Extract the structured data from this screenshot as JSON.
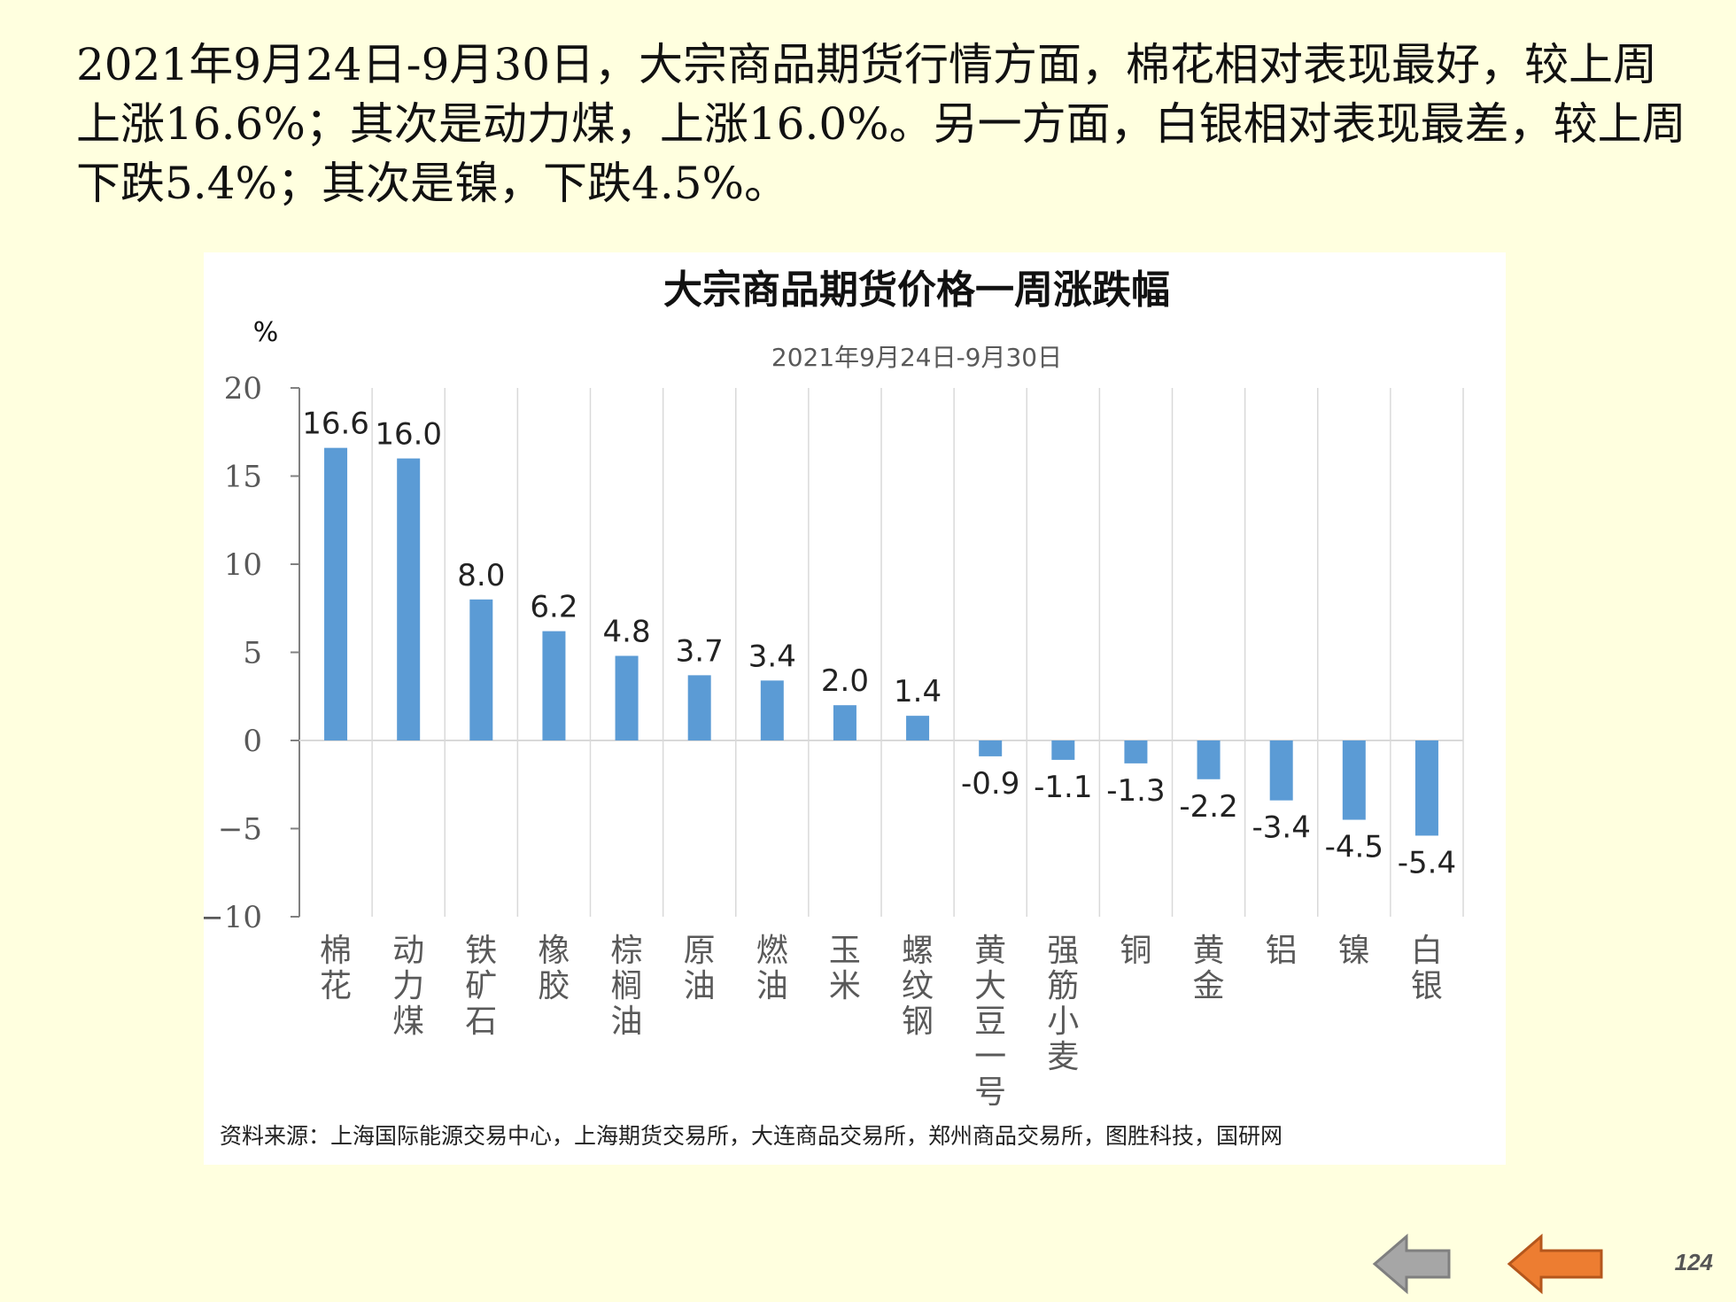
{
  "headline": "2021年9月24日-9月30日，大宗商品期货行情方面，棉花相对表现最好，较上周上涨16.6%；其次是动力煤，上涨16.0%。另一方面，白银相对表现最差，较上周下跌5.4%；其次是镍，下跌4.5%。",
  "chart_data": {
    "type": "bar",
    "title": "大宗商品期货价格一周涨跌幅",
    "subtitle": "2021年9月24日-9月30日",
    "ylabel": "%",
    "xlabel": "",
    "ylim": [
      -10,
      20
    ],
    "yticks": [
      20,
      15,
      10,
      5,
      0,
      -5,
      -10
    ],
    "ytick_labels": [
      "20",
      "15",
      "10",
      "5",
      "0",
      "−5",
      "−10"
    ],
    "categories": [
      "棉花",
      "动力煤",
      "铁矿石",
      "橡胶",
      "棕榈油",
      "原油",
      "燃油",
      "玉米",
      "螺纹钢",
      "黄大豆1号",
      "强筋小麦",
      "铜",
      "黄金",
      "铝",
      "镍",
      "白银"
    ],
    "category_labels": [
      "棉花",
      "动力煤",
      "铁矿石",
      "橡胶",
      "棕榈油",
      "原油",
      "燃油",
      "玉米",
      "螺纹钢",
      "黄大豆一号",
      "强筋小麦",
      "铜",
      "黄金",
      "铝",
      "镍",
      "白银"
    ],
    "values": [
      16.6,
      16.0,
      8.0,
      6.2,
      4.8,
      3.7,
      3.4,
      2.0,
      1.4,
      -0.9,
      -1.1,
      -1.3,
      -2.2,
      -3.4,
      -4.5,
      -5.4
    ],
    "data_labels": [
      "16.6",
      "16.0",
      "8.0",
      "6.2",
      "4.8",
      "3.7",
      "3.4",
      "2.0",
      "1.4",
      "-0.9",
      "-1.1",
      "-1.3",
      "-2.2",
      "-3.4",
      "-4.5",
      "-5.4"
    ],
    "bar_color": "#5b9bd5",
    "grid": "vertical"
  },
  "source": "资料来源：上海国际能源交易中心，上海期货交易所，大连商品交易所，郑州商品交易所，图胜科技，国研网",
  "nav": {
    "back_label": "back",
    "prev_label": "previous"
  },
  "page_number": "124",
  "colors": {
    "background": "#ffffdf",
    "back_arrow": "#a6a6a6",
    "prev_arrow": "#ed7d31"
  }
}
